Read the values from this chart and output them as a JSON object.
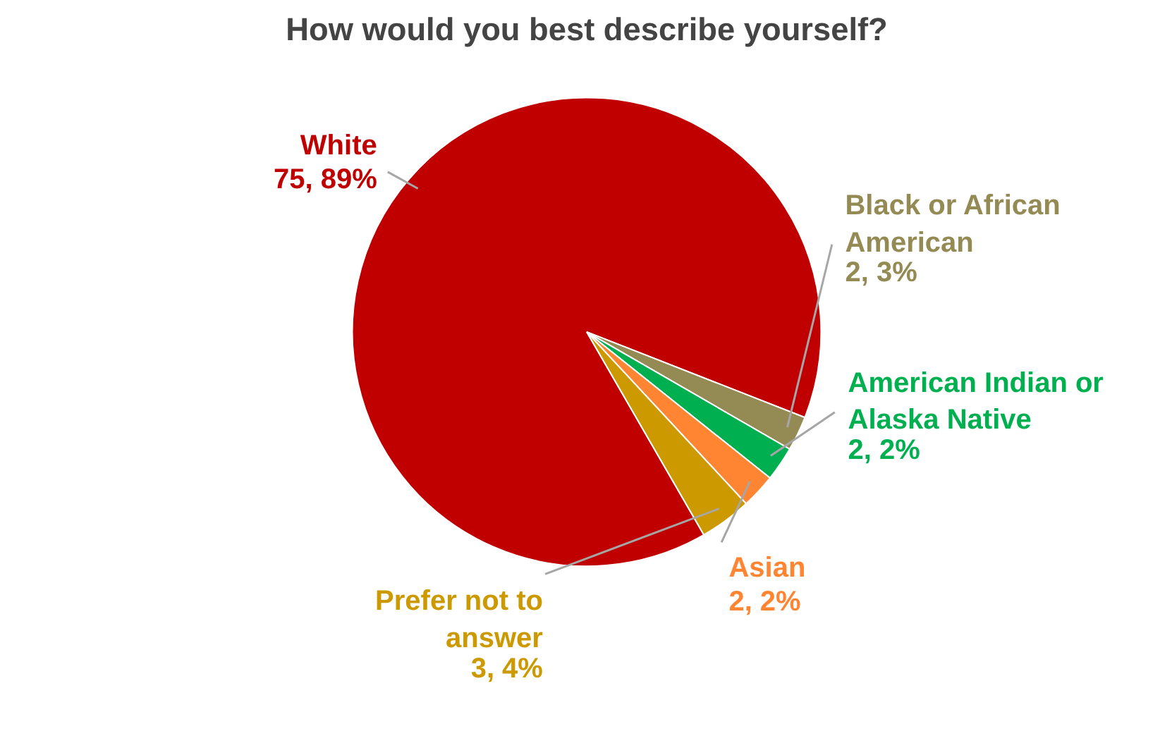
{
  "chart_data": {
    "type": "pie",
    "title": "How would you best describe yourself?",
    "categories": [
      "White",
      "Black or African American",
      "American Indian or Alaska Native",
      "Asian",
      "Prefer not to answer"
    ],
    "values": [
      75,
      2,
      2,
      2,
      3
    ],
    "colors": [
      "#c00000",
      "#948a54",
      "#00b050",
      "#ff8533",
      "#cc9900"
    ],
    "value_labels": [
      "75, 89%",
      "2, 3%",
      "2, 2%",
      "2, 2%",
      "3, 4%"
    ],
    "legend": false
  }
}
